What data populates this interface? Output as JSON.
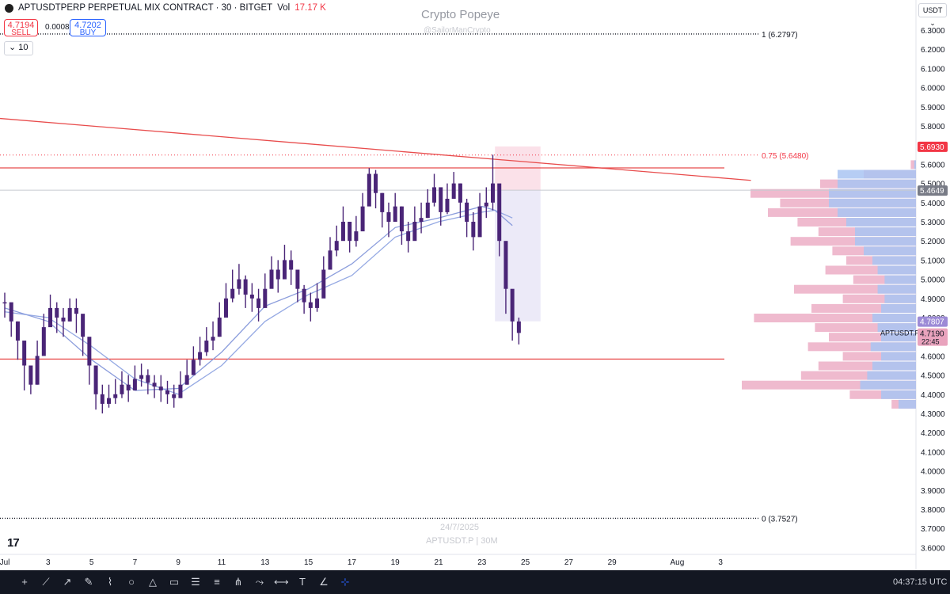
{
  "header": {
    "symbol_line": "APTUSDTPERP PERPETUAL MIX CONTRACT · 30 · BITGET",
    "vol_label": "Vol",
    "vol_value": "17.17 K",
    "sell_price": "4.7194",
    "sell_label": "SELL",
    "spread": "0.0008",
    "buy_price": "4.7202",
    "buy_label": "BUY",
    "indicator_count": "10",
    "currency": "USDT"
  },
  "watermark": {
    "title": "Crypto Popeye",
    "handle": "@SailorManCrypto",
    "date": "24/7/2025",
    "series": "APTUSDT.P | 30M"
  },
  "logo_text": "17",
  "clock": "04:37:15 UTC",
  "toolbar": {
    "tools": [
      "crosshair-icon",
      "trend-line-icon",
      "ray-icon",
      "brush-icon",
      "path-icon",
      "circle-icon",
      "triangle-icon",
      "rectangle-icon",
      "parallel-channel-icon",
      "regression-icon",
      "pitchfork-icon",
      "polyline-icon",
      "measure-icon",
      "text-icon",
      "angle-icon",
      "fib-icon"
    ]
  },
  "colors": {
    "candle": "#4a2577",
    "ma_fast": "#7e92d8",
    "ma_slow": "#8aa0e0",
    "red_line": "#e84c4c",
    "vp_pink": "#e9a3bd",
    "vp_blue": "#a9c4f2",
    "accent": "#2962ff"
  },
  "chart_data": {
    "type": "line",
    "title": "",
    "xlabel": "",
    "ylabel": "",
    "ylim": [
      3.5862,
      6.3822
    ],
    "x_ticks": [
      {
        "day": 0,
        "label": "Jul"
      },
      {
        "day": 2,
        "label": "3"
      },
      {
        "day": 4,
        "label": "5"
      },
      {
        "day": 6,
        "label": "7"
      },
      {
        "day": 8,
        "label": "9"
      },
      {
        "day": 10,
        "label": "11"
      },
      {
        "day": 12,
        "label": "13"
      },
      {
        "day": 14,
        "label": "15"
      },
      {
        "day": 16,
        "label": "17"
      },
      {
        "day": 18,
        "label": "19"
      },
      {
        "day": 20,
        "label": "21"
      },
      {
        "day": 22,
        "label": "23"
      },
      {
        "day": 24,
        "label": "25"
      },
      {
        "day": 26,
        "label": "27"
      },
      {
        "day": 28,
        "label": "29"
      },
      {
        "day": 31,
        "label": "Aug"
      },
      {
        "day": 33,
        "label": "3"
      }
    ],
    "y_ticks": [
      "6.3000",
      "6.2000",
      "6.1000",
      "6.0000",
      "5.9000",
      "5.8000",
      "5.7000",
      "5.6000",
      "5.5000",
      "5.4000",
      "5.3000",
      "5.2000",
      "5.1000",
      "5.0000",
      "4.9000",
      "4.8000",
      "4.7000",
      "4.6000",
      "4.5000",
      "4.4000",
      "4.3000",
      "4.2000",
      "4.1000",
      "4.0000",
      "3.9000",
      "3.8000",
      "3.7000",
      "3.6000"
    ],
    "series": [
      {
        "style": "candles",
        "x_day": [
          0.0,
          0.3,
          0.6,
          0.9,
          1.2,
          1.5,
          1.8,
          2.1,
          2.4,
          2.7,
          3.0,
          3.3,
          3.6,
          3.9,
          4.2,
          4.5,
          4.8,
          5.1,
          5.4,
          5.7,
          6.0,
          6.3,
          6.6,
          6.9,
          7.2,
          7.5,
          7.8,
          8.1,
          8.4,
          8.7,
          9.0,
          9.3,
          9.6,
          9.9,
          10.2,
          10.5,
          10.8,
          11.1,
          11.4,
          11.7,
          12.0,
          12.3,
          12.6,
          12.9,
          13.2,
          13.5,
          13.8,
          14.1,
          14.4,
          14.7,
          15.0,
          15.3,
          15.6,
          15.9,
          16.2,
          16.5,
          16.8,
          17.1,
          17.4,
          17.7,
          18.0,
          18.3,
          18.6,
          18.9,
          19.2,
          19.5,
          19.8,
          20.1,
          20.4,
          20.7,
          21.0,
          21.3,
          21.6,
          21.9,
          22.2,
          22.5,
          22.8,
          23.1,
          23.4,
          23.7
        ],
        "close": [
          4.88,
          4.78,
          4.68,
          4.55,
          4.45,
          4.6,
          4.75,
          4.85,
          4.8,
          4.78,
          4.85,
          4.82,
          4.7,
          4.55,
          4.4,
          4.35,
          4.38,
          4.4,
          4.45,
          4.42,
          4.48,
          4.5,
          4.46,
          4.44,
          4.42,
          4.4,
          4.38,
          4.45,
          4.5,
          4.58,
          4.62,
          4.68,
          4.7,
          4.8,
          4.9,
          4.95,
          5.0,
          4.92,
          4.9,
          4.85,
          4.95,
          5.05,
          5.0,
          5.1,
          5.05,
          4.95,
          4.88,
          4.85,
          4.9,
          5.05,
          5.15,
          5.2,
          5.3,
          5.2,
          5.25,
          5.38,
          5.55,
          5.45,
          5.35,
          5.3,
          5.38,
          5.25,
          5.2,
          5.3,
          5.32,
          5.4,
          5.48,
          5.35,
          5.42,
          5.5,
          5.4,
          5.3,
          5.22,
          5.38,
          5.4,
          5.5,
          5.2,
          4.95,
          4.78,
          4.72
        ],
        "high": [
          4.93,
          4.85,
          4.78,
          4.65,
          4.55,
          4.68,
          4.82,
          4.92,
          4.88,
          4.85,
          4.9,
          4.9,
          4.8,
          4.65,
          4.5,
          4.45,
          4.45,
          4.48,
          4.52,
          4.5,
          4.55,
          4.56,
          4.53,
          4.5,
          4.5,
          4.47,
          4.45,
          4.52,
          4.58,
          4.65,
          4.7,
          4.75,
          4.78,
          4.88,
          4.98,
          5.05,
          5.08,
          5.02,
          4.98,
          4.95,
          5.03,
          5.12,
          5.1,
          5.18,
          5.15,
          5.05,
          4.97,
          4.93,
          4.98,
          5.12,
          5.22,
          5.28,
          5.38,
          5.3,
          5.33,
          5.45,
          5.58,
          5.57,
          5.45,
          5.4,
          5.45,
          5.38,
          5.3,
          5.38,
          5.4,
          5.47,
          5.55,
          5.46,
          5.5,
          5.56,
          5.5,
          5.42,
          5.35,
          5.45,
          5.48,
          5.65,
          5.4,
          5.15,
          4.9,
          4.8
        ],
        "low": [
          4.8,
          4.7,
          4.58,
          4.42,
          4.4,
          4.45,
          4.65,
          4.78,
          4.72,
          4.7,
          4.78,
          4.72,
          4.6,
          4.45,
          4.32,
          4.3,
          4.33,
          4.35,
          4.38,
          4.36,
          4.42,
          4.44,
          4.4,
          4.38,
          4.36,
          4.35,
          4.33,
          4.38,
          4.45,
          4.52,
          4.55,
          4.6,
          4.63,
          4.7,
          4.82,
          4.88,
          4.92,
          4.85,
          4.83,
          4.78,
          4.87,
          4.97,
          4.93,
          5.03,
          4.97,
          4.88,
          4.82,
          4.78,
          4.83,
          4.97,
          5.07,
          5.12,
          5.22,
          5.14,
          5.17,
          5.3,
          5.45,
          5.37,
          5.27,
          5.22,
          5.3,
          5.18,
          5.14,
          5.22,
          5.24,
          5.32,
          5.38,
          5.28,
          5.34,
          5.42,
          5.32,
          5.22,
          5.15,
          5.3,
          5.32,
          5.36,
          5.12,
          4.82,
          4.68,
          4.66
        ]
      },
      {
        "name": "",
        "style": "ma-fast",
        "x_day": [
          0,
          2,
          4,
          6,
          8,
          10,
          12,
          14,
          16,
          18,
          20,
          22,
          22.6,
          23.4
        ],
        "values": [
          4.85,
          4.78,
          4.58,
          4.42,
          4.43,
          4.62,
          4.86,
          4.95,
          5.08,
          5.27,
          5.32,
          5.38,
          5.36,
          5.28
        ]
      },
      {
        "name": "",
        "style": "ma-slow",
        "x_day": [
          0,
          2,
          4,
          6,
          8,
          10,
          12,
          14,
          16,
          18,
          20,
          22,
          22.6,
          23.4
        ],
        "values": [
          4.83,
          4.8,
          4.65,
          4.48,
          4.4,
          4.55,
          4.78,
          4.92,
          5.02,
          5.22,
          5.3,
          5.35,
          5.36,
          5.32
        ]
      }
    ],
    "fib_levels": [
      {
        "label": "1 (6.2797)",
        "price": 6.2797
      },
      {
        "label": "0.75 (5.6480)",
        "price": 5.648
      },
      {
        "label": "0 (3.7527)",
        "price": 3.7527
      }
    ],
    "horizontal_lines": [
      {
        "price": 5.581,
        "color": "red"
      },
      {
        "price": 5.4649,
        "color": "gray"
      },
      {
        "price": 4.5835,
        "color": "red"
      }
    ],
    "trendline": {
      "x_day": [
        0,
        34.4
      ],
      "price": [
        5.839,
        5.516
      ]
    },
    "position_box": {
      "x_day": [
        22.6,
        24.7
      ],
      "entry": 5.4649,
      "stop": 5.693,
      "target": 4.7807
    },
    "price_labels": [
      {
        "price": 5.693,
        "text": "5.6930",
        "color": "#f23645"
      },
      {
        "price": 5.4649,
        "text": "5.4649",
        "color": "#787b86"
      },
      {
        "price": 4.7807,
        "text": "4.7807",
        "color": "#9c8ad6"
      },
      {
        "price": 4.719,
        "text": "4.7190",
        "sub": "22:45",
        "color": "#e9a3bd"
      }
    ],
    "last_symbol_label": "APTUSDT.P",
    "volume_profile": {
      "prices": [
        5.6,
        5.55,
        5.5,
        5.45,
        5.4,
        5.35,
        5.3,
        5.25,
        5.2,
        5.15,
        5.1,
        5.05,
        5.0,
        4.95,
        4.9,
        4.85,
        4.8,
        4.75,
        4.7,
        4.65,
        4.6,
        4.55,
        4.5,
        4.45,
        4.4,
        4.35
      ],
      "total": [
        0.03,
        0.3,
        0.55,
        0.95,
        0.78,
        0.85,
        0.68,
        0.56,
        0.72,
        0.48,
        0.4,
        0.52,
        0.36,
        0.7,
        0.42,
        0.6,
        0.93,
        0.58,
        0.5,
        0.62,
        0.42,
        0.56,
        0.66,
        1.0,
        0.38,
        0.14
      ],
      "blue": [
        0.01,
        0.45,
        0.45,
        0.5,
        0.5,
        0.45,
        0.4,
        0.35,
        0.35,
        0.3,
        0.25,
        0.22,
        0.18,
        0.22,
        0.18,
        0.2,
        0.25,
        0.22,
        0.2,
        0.26,
        0.2,
        0.25,
        0.28,
        0.32,
        0.2,
        0.1
      ]
    }
  }
}
